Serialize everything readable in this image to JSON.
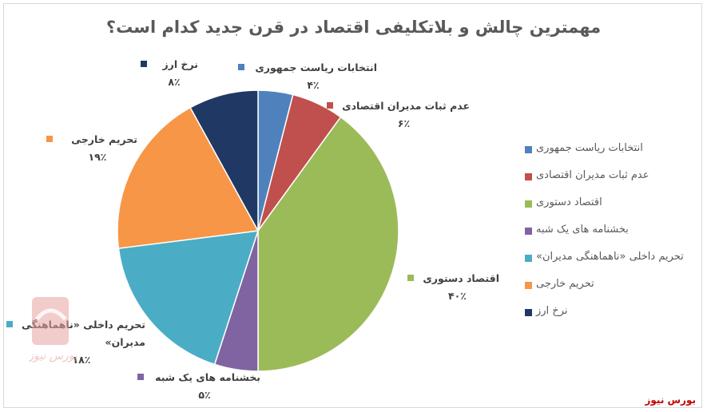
{
  "chart_data": {
    "type": "pie",
    "title": "مهمترین چالش و بلاتکلیفی اقتصاد در قرن جدید کدام است؟",
    "categories": [
      "انتخابات ریاست جمهوری",
      "عدم ثبات مدیران اقتصادی",
      "اقتصاد دستوری",
      "بخشنامه های یک شبه",
      "تحریم داخلی «ناهماهنگی مدیران»",
      "تحریم خارجی",
      "نرخ ارز"
    ],
    "values": [
      4,
      6,
      40,
      5,
      18,
      19,
      8
    ],
    "value_labels": [
      "۴٪",
      "۶٪",
      "۴۰٪",
      "۵٪",
      "۱۸٪",
      "۱۹٪",
      "۸٪"
    ],
    "colors": [
      "#4f81bd",
      "#c0504d",
      "#9bbb59",
      "#8064a2",
      "#4bacc6",
      "#f79646",
      "#1f3864"
    ],
    "legend_position": "right",
    "start_angle": "top, clockwise"
  },
  "brand": "بورس نیوز",
  "watermark_text": "بورس نیوز"
}
